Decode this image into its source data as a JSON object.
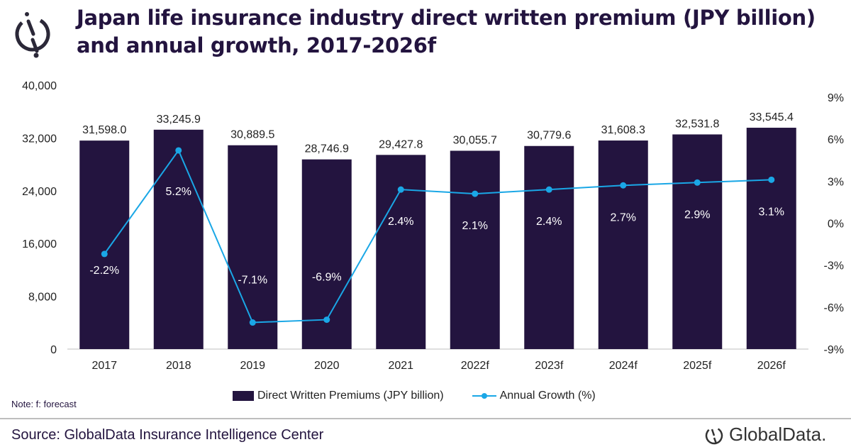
{
  "title": "Japan life insurance industry direct written premium (JPY billion) and annual growth, 2017-2026f",
  "note": "Note: f: forecast",
  "source": "Source: GlobalData Insurance Intelligence Center",
  "brand": "GlobalData.",
  "colors": {
    "bar": "#23143f",
    "line": "#1aa7e6"
  },
  "chart_data": {
    "type": "bar+line",
    "categories": [
      "2017",
      "2018",
      "2019",
      "2020",
      "2021",
      "2022f",
      "2023f",
      "2024f",
      "2025f",
      "2026f"
    ],
    "series": [
      {
        "name": "Direct Written Premiums (JPY billion)",
        "type": "bar",
        "axis": "left",
        "values": [
          31598.0,
          33245.9,
          30889.5,
          28746.9,
          29427.8,
          30055.7,
          30779.6,
          31608.3,
          32531.8,
          33545.4
        ],
        "labels": [
          "31,598.0",
          "33,245.9",
          "30,889.5",
          "28,746.9",
          "29,427.8",
          "30,055.7",
          "30,779.6",
          "31,608.3",
          "32,531.8",
          "33,545.4"
        ]
      },
      {
        "name": "Annual Growth (%)",
        "type": "line",
        "axis": "right",
        "values": [
          -2.2,
          5.2,
          -7.1,
          -6.9,
          2.4,
          2.1,
          2.4,
          2.7,
          2.9,
          3.1
        ],
        "labels": [
          "-2.2%",
          "5.2%",
          "-7.1%",
          "-6.9%",
          "2.4%",
          "2.1%",
          "2.4%",
          "2.7%",
          "2.9%",
          "3.1%"
        ]
      }
    ],
    "left_axis": {
      "range": [
        0,
        40000
      ],
      "ticks": [
        "0",
        "8,000",
        "16,000",
        "24,000",
        "32,000",
        "40,000"
      ]
    },
    "right_axis": {
      "range": [
        -9,
        9
      ],
      "ticks": [
        "-9%",
        "-6%",
        "-3%",
        "0%",
        "3%",
        "6%",
        "9%"
      ]
    },
    "grid": false,
    "legend": "bottom"
  }
}
